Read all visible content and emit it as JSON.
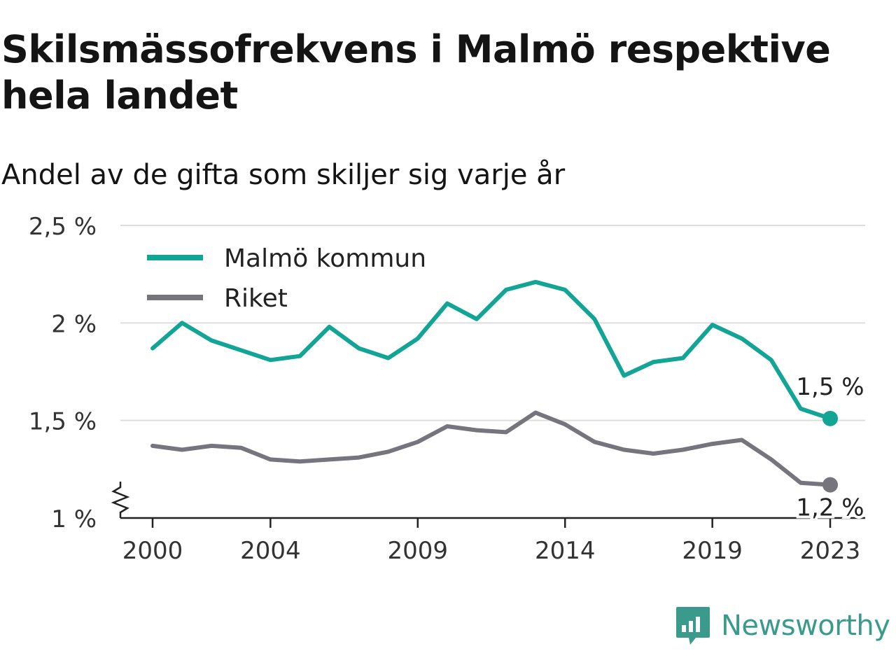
{
  "title": "Skilsmässofrekvens i Malmö respektive hela landet",
  "subtitle": "Andel av de gifta som skiljer sig varje år",
  "brand": {
    "name": "Newsworthy",
    "icon": "newsworthy-logo-icon"
  },
  "colors": {
    "malmo": "#12a596",
    "riket": "#76747d",
    "grid": "#dddddd",
    "axis": "#222222",
    "brand": "#3a9a8c"
  },
  "chart_data": {
    "type": "line",
    "title": "Skilsmässofrekvens i Malmö respektive hela landet",
    "subtitle": "Andel av de gifta som skiljer sig varje år",
    "xlabel": "",
    "ylabel": "",
    "x": [
      2000,
      2001,
      2002,
      2003,
      2004,
      2005,
      2006,
      2007,
      2008,
      2009,
      2010,
      2011,
      2012,
      2013,
      2014,
      2015,
      2016,
      2017,
      2018,
      2019,
      2020,
      2021,
      2022,
      2023
    ],
    "xticks": [
      2000,
      2004,
      2009,
      2014,
      2019,
      2023
    ],
    "xtick_labels": [
      "2000",
      "2004",
      "2009",
      "2014",
      "2019",
      "2023"
    ],
    "ylim": [
      1.0,
      2.5
    ],
    "yticks": [
      1.0,
      1.5,
      2.0,
      2.5
    ],
    "ytick_labels": [
      "1 %",
      "1,5 %",
      "2 %",
      "2,5 %"
    ],
    "y_axis_break": true,
    "grid": true,
    "legend_position": "top-left",
    "series": [
      {
        "name": "Malmö kommun",
        "color": "#12a596",
        "values": [
          1.87,
          2.0,
          1.91,
          1.86,
          1.81,
          1.83,
          1.98,
          1.87,
          1.82,
          1.92,
          2.1,
          2.02,
          2.17,
          2.21,
          2.17,
          2.02,
          1.73,
          1.8,
          1.82,
          1.99,
          1.92,
          1.81,
          1.56,
          1.51
        ],
        "end_label": "1,5 %"
      },
      {
        "name": "Riket",
        "color": "#76747d",
        "values": [
          1.37,
          1.35,
          1.37,
          1.36,
          1.3,
          1.29,
          1.3,
          1.31,
          1.34,
          1.39,
          1.47,
          1.45,
          1.44,
          1.54,
          1.48,
          1.39,
          1.35,
          1.33,
          1.35,
          1.38,
          1.4,
          1.3,
          1.18,
          1.17
        ],
        "end_label": "1,2 %"
      }
    ]
  }
}
